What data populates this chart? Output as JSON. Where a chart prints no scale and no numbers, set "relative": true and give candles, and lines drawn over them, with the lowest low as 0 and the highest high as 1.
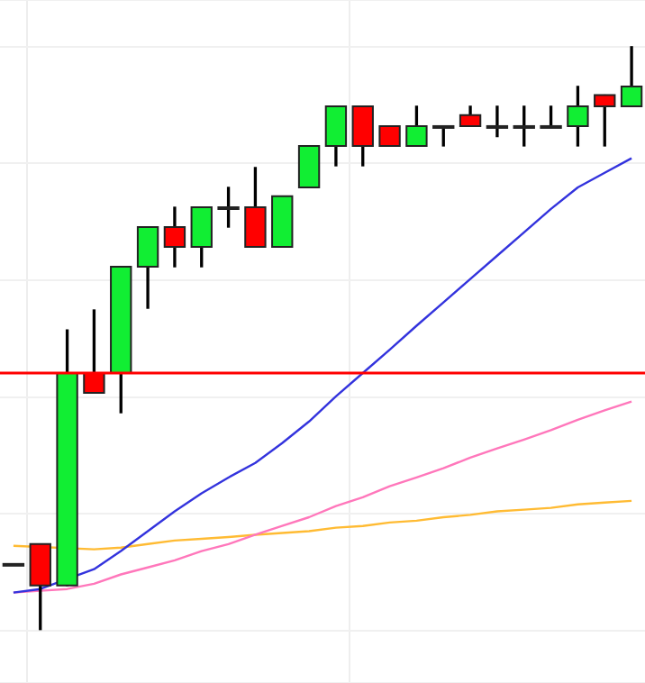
{
  "chart_data": {
    "type": "candlestick",
    "relative": true,
    "grid": true,
    "legend": false,
    "categories": [
      null,
      null,
      null,
      null,
      null,
      null,
      null,
      null,
      null,
      null,
      null,
      null,
      null,
      null,
      null,
      null,
      null,
      null,
      null,
      null,
      null,
      null,
      null,
      null
    ],
    "ohlc": [
      [
        0.114,
        0.114,
        0.114,
        0.114
      ],
      [
        0.148,
        0.148,
        0,
        0.077
      ],
      [
        0.077,
        0.515,
        0.077,
        0.441
      ],
      [
        0.441,
        0.549,
        0.407,
        0.407
      ],
      [
        0.441,
        0.623,
        0.373,
        0.623
      ],
      [
        0.623,
        0.691,
        0.552,
        0.691
      ],
      [
        0.691,
        0.725,
        0.623,
        0.657
      ],
      [
        0.657,
        0.725,
        0.623,
        0.725
      ],
      [
        0.725,
        0.759,
        0.691,
        0.725
      ],
      [
        0.725,
        0.793,
        0.657,
        0.657
      ],
      [
        0.657,
        0.744,
        0.657,
        0.744
      ],
      [
        0.759,
        0.83,
        0.759,
        0.83
      ],
      [
        0.83,
        0.898,
        0.796,
        0.898
      ],
      [
        0.898,
        0.898,
        0.796,
        0.83
      ],
      [
        0.864,
        0.864,
        0.83,
        0.83
      ],
      [
        0.83,
        0.898,
        0.83,
        0.864
      ],
      [
        0.864,
        0.864,
        0.83,
        0.864
      ],
      [
        0.883,
        0.898,
        0.864,
        0.864
      ],
      [
        0.864,
        0.898,
        0.846,
        0.864
      ],
      [
        0.864,
        0.898,
        0.83,
        0.864
      ],
      [
        0.864,
        0.898,
        0.864,
        0.864
      ],
      [
        0.864,
        0.932,
        0.83,
        0.898
      ],
      [
        0.917,
        0.917,
        0.83,
        0.898
      ],
      [
        0.898,
        1,
        0.898,
        0.932
      ]
    ],
    "colors": [
      "#000000",
      "#ff0000",
      "#11ee33",
      "#ff0000",
      "#11ee33",
      "#11ee33",
      "#ff0000",
      "#11ee33",
      "#11ee33",
      "#ff0000",
      "#11ee33",
      "#11ee33",
      "#11ee33",
      "#ff0000",
      "#ff0000",
      "#11ee33",
      "#11ee33",
      "#ff0000",
      "#11ee33",
      "#11ee33",
      "#11ee33",
      "#11ee33",
      "#ff0000",
      "#11ee33"
    ],
    "series": [
      {
        "type": "line",
        "color": "#3333dd",
        "values": [
          0.065,
          0.071,
          null,
          0.105,
          0.136,
          0.17,
          0.204,
          0.235,
          0.262,
          0.287,
          0.321,
          0.358,
          0.401,
          0.441,
          0.481,
          0.522,
          0.562,
          0.602,
          0.642,
          0.682,
          0.722,
          0.759,
          0.784,
          0.809
        ]
      },
      {
        "type": "line",
        "color": "#ff77bb",
        "values": [
          0.065,
          0.068,
          0.071,
          0.08,
          0.096,
          0.108,
          0.12,
          0.136,
          0.148,
          0.164,
          0.179,
          0.194,
          0.213,
          0.228,
          0.247,
          0.262,
          0.278,
          0.296,
          0.312,
          0.327,
          0.343,
          0.361,
          0.377,
          0.392
        ]
      },
      {
        "type": "line",
        "color": "#ffbb33",
        "values": [
          0.145,
          null,
          null,
          0.139,
          0.142,
          0.148,
          0.154,
          0.157,
          0.16,
          0.164,
          0.167,
          0.17,
          0.176,
          0.179,
          0.185,
          0.188,
          0.194,
          0.198,
          0.204,
          0.207,
          0.21,
          0.216,
          0.219,
          0.222
        ]
      }
    ],
    "ref_lines": [
      {
        "axis": "y",
        "value": 0.441,
        "color": "#ff0000"
      }
    ]
  }
}
